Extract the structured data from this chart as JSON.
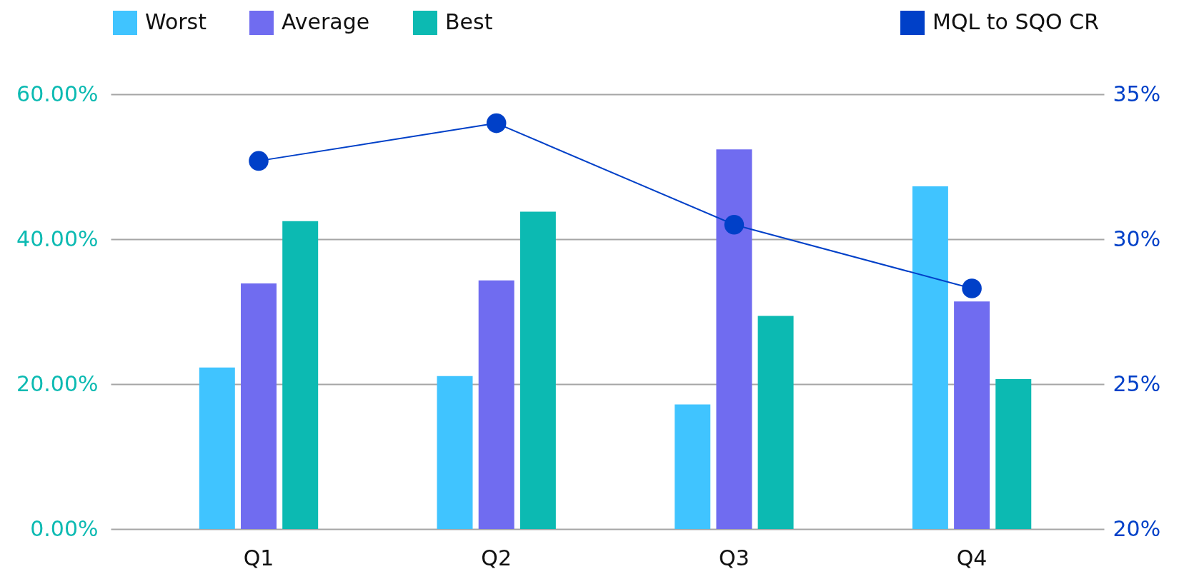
{
  "chart_data": {
    "type": "bar",
    "categories": [
      "Q1",
      "Q2",
      "Q3",
      "Q4"
    ],
    "series": [
      {
        "name": "Worst",
        "color": "#40c4ff",
        "values": [
          22.3,
          21.1,
          17.2,
          47.3
        ]
      },
      {
        "name": "Average",
        "color": "#706cf0",
        "values": [
          33.9,
          34.3,
          52.4,
          31.4
        ]
      },
      {
        "name": "Best",
        "color": "#0cbab2",
        "values": [
          42.5,
          43.8,
          29.4,
          20.7
        ]
      },
      {
        "name": "MQL to SQO CR",
        "type": "line",
        "axis": "y2",
        "color": "#0040c8",
        "values": [
          32.7,
          34.0,
          30.5,
          28.3
        ]
      }
    ],
    "ylim": [
      0,
      60
    ],
    "yticks": [
      {
        "value": 0,
        "label": "0.00%"
      },
      {
        "value": 20,
        "label": "20.00%"
      },
      {
        "value": 40,
        "label": "40.00%"
      },
      {
        "value": 60,
        "label": "60.00%"
      }
    ],
    "y2lim": [
      20,
      35
    ],
    "y2ticks": [
      {
        "value": 20,
        "label": "20%"
      },
      {
        "value": 25,
        "label": "25%"
      },
      {
        "value": 30,
        "label": "30%"
      },
      {
        "value": 35,
        "label": "35%"
      }
    ],
    "grid": "y",
    "legend": "top",
    "marker": "circle"
  }
}
